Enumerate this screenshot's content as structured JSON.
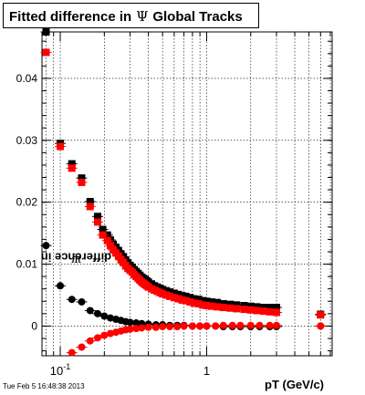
{
  "title": {
    "prefix": "Fitted difference in",
    "symbol": "Ψ",
    "suffix": "Global Tracks"
  },
  "axis_labels": {
    "y_prefix": "difference in",
    "y_symbol": "Ψ",
    "x": "pT (GeV/c)"
  },
  "timestamp": "Tue Feb  5 16:48:38 2013",
  "chart_data": {
    "type": "scatter",
    "title": "Fitted difference in Ψ Global Tracks",
    "xlabel": "pT (GeV/c)",
    "ylabel": "difference in Ψ",
    "xscale": "log",
    "xlim": [
      0.075,
      7.2
    ],
    "ylim": [
      -0.0048,
      0.0475
    ],
    "grid": true,
    "x_tick_labels": [
      {
        "value": 0.1,
        "base": "10",
        "exp": "-1"
      },
      {
        "value": 1,
        "base": "1",
        "exp": ""
      }
    ],
    "y_ticks": [
      0,
      0.01,
      0.02,
      0.03,
      0.04
    ],
    "y_tick_labels": [
      "0",
      "0.01",
      "0.02",
      "0.03",
      "0.04"
    ],
    "series": [
      {
        "color": "#000000",
        "marker": "square",
        "x": [
          0.08,
          0.1,
          0.12,
          0.14,
          0.16,
          0.18,
          0.195,
          0.21,
          0.22,
          0.23,
          0.24,
          0.25,
          0.26,
          0.27,
          0.28,
          0.29,
          0.3,
          0.31,
          0.32,
          0.33,
          0.34,
          0.35,
          0.36,
          0.37,
          0.38,
          0.39,
          0.4,
          0.42,
          0.44,
          0.46,
          0.48,
          0.5,
          0.53,
          0.56,
          0.6,
          0.64,
          0.68,
          0.72,
          0.77,
          0.82,
          0.88,
          0.94,
          1.0,
          1.08,
          1.18,
          1.3,
          1.45,
          1.6,
          1.8,
          2.0,
          2.2,
          2.45,
          2.7,
          3.0,
          6.0
        ],
        "y": [
          0.0478,
          0.0295,
          0.0262,
          0.0239,
          0.0201,
          0.0177,
          0.0156,
          0.0147,
          0.0139,
          0.0132,
          0.0127,
          0.0122,
          0.0116,
          0.0112,
          0.0106,
          0.0102,
          0.0098,
          0.0095,
          0.0091,
          0.0088,
          0.0085,
          0.0082,
          0.0079,
          0.0077,
          0.0075,
          0.0073,
          0.0071,
          0.0068,
          0.0065,
          0.0063,
          0.0061,
          0.0059,
          0.0057,
          0.0055,
          0.0053,
          0.0051,
          0.0049,
          0.0048,
          0.0046,
          0.0044,
          0.0043,
          0.0041,
          0.004,
          0.0039,
          0.0038,
          0.0036,
          0.0035,
          0.0034,
          0.0033,
          0.0032,
          0.0031,
          0.003,
          0.003,
          0.003,
          0.0019
        ]
      },
      {
        "color": "#ff0000",
        "marker": "square",
        "x": [
          0.08,
          0.1,
          0.12,
          0.14,
          0.16,
          0.18,
          0.195,
          0.21,
          0.22,
          0.23,
          0.24,
          0.25,
          0.26,
          0.27,
          0.28,
          0.29,
          0.3,
          0.31,
          0.32,
          0.33,
          0.34,
          0.35,
          0.36,
          0.37,
          0.38,
          0.39,
          0.4,
          0.42,
          0.44,
          0.46,
          0.48,
          0.5,
          0.53,
          0.56,
          0.6,
          0.64,
          0.68,
          0.72,
          0.77,
          0.82,
          0.88,
          0.94,
          1.0,
          1.08,
          1.18,
          1.3,
          1.45,
          1.6,
          1.8,
          2.0,
          2.2,
          2.45,
          2.7,
          3.0,
          6.0
        ],
        "y": [
          0.0442,
          0.029,
          0.0255,
          0.0232,
          0.0193,
          0.0168,
          0.0147,
          0.0138,
          0.013,
          0.0123,
          0.0118,
          0.0113,
          0.0107,
          0.0103,
          0.0097,
          0.0093,
          0.009,
          0.0087,
          0.0083,
          0.008,
          0.0077,
          0.0074,
          0.0071,
          0.0069,
          0.0067,
          0.0065,
          0.0063,
          0.006,
          0.0058,
          0.0056,
          0.0054,
          0.0052,
          0.005,
          0.0048,
          0.0046,
          0.0044,
          0.0042,
          0.0041,
          0.0039,
          0.0037,
          0.0036,
          0.0034,
          0.0033,
          0.0032,
          0.0031,
          0.003,
          0.0029,
          0.0028,
          0.0027,
          0.0026,
          0.0025,
          0.0024,
          0.0023,
          0.0022,
          0.0018
        ]
      },
      {
        "color": "#000000",
        "marker": "circle",
        "x": [
          0.08,
          0.1,
          0.12,
          0.14,
          0.16,
          0.18,
          0.2,
          0.22,
          0.24,
          0.26,
          0.28,
          0.3,
          0.33,
          0.36,
          0.4,
          0.45,
          0.5,
          0.56,
          0.63,
          0.7,
          0.8,
          0.9,
          1.0,
          1.15,
          1.3,
          1.5,
          1.7,
          2.0,
          2.3,
          2.7,
          3.0,
          6.0
        ],
        "y": [
          0.013,
          0.0065,
          0.0043,
          0.0039,
          0.0025,
          0.002,
          0.0016,
          0.0013,
          0.0011,
          0.0009,
          0.0007,
          0.0006,
          0.0005,
          0.0004,
          0.0003,
          0.0002,
          0.0002,
          0.0001,
          0.0001,
          0.0001,
          0.0,
          0.0,
          0.0,
          0.0,
          -0.0001,
          -0.0001,
          -0.0001,
          -0.0001,
          -0.0001,
          -0.0001,
          -0.0001,
          0.0
        ]
      },
      {
        "color": "#ff0000",
        "marker": "circle",
        "x": [
          0.12,
          0.14,
          0.16,
          0.18,
          0.2,
          0.22,
          0.24,
          0.26,
          0.28,
          0.3,
          0.33,
          0.36,
          0.4,
          0.45,
          0.5,
          0.56,
          0.63,
          0.7,
          0.8,
          0.9,
          1.0,
          1.15,
          1.3,
          1.5,
          1.7,
          2.0,
          2.3,
          2.7,
          3.0,
          6.0
        ],
        "y": [
          -0.0043,
          -0.0034,
          -0.0024,
          -0.0019,
          -0.0015,
          -0.0012,
          -0.001,
          -0.0008,
          -0.0006,
          -0.0005,
          -0.0004,
          -0.0003,
          -0.0002,
          -0.0002,
          -0.0001,
          -0.0001,
          -0.0001,
          0.0,
          0.0,
          0.0,
          0.0,
          0.0,
          0.0001,
          0.0001,
          0.0001,
          0.0001,
          0.0001,
          0.0001,
          0.0001,
          0.0
        ]
      }
    ]
  }
}
